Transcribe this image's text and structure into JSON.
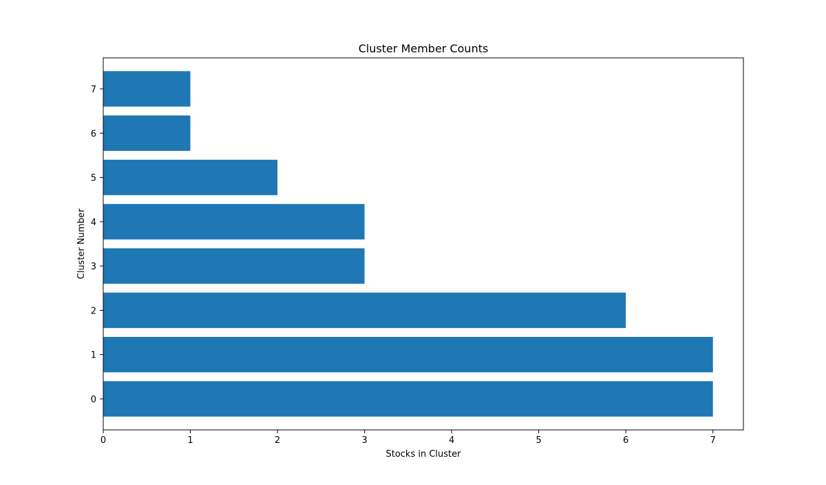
{
  "chart_data": {
    "type": "bar",
    "orientation": "horizontal",
    "title": "Cluster Member Counts",
    "xlabel": "Stocks in Cluster",
    "ylabel": "Cluster Number",
    "categories": [
      "0",
      "1",
      "2",
      "3",
      "4",
      "5",
      "6",
      "7"
    ],
    "values": [
      7,
      7,
      6,
      3,
      3,
      2,
      1,
      1
    ],
    "xlim": [
      0,
      7.35
    ],
    "x_ticks": [
      "0",
      "1",
      "2",
      "3",
      "4",
      "5",
      "6",
      "7"
    ],
    "grid": false,
    "legend": "none",
    "bar_color": "#1f77b4"
  }
}
